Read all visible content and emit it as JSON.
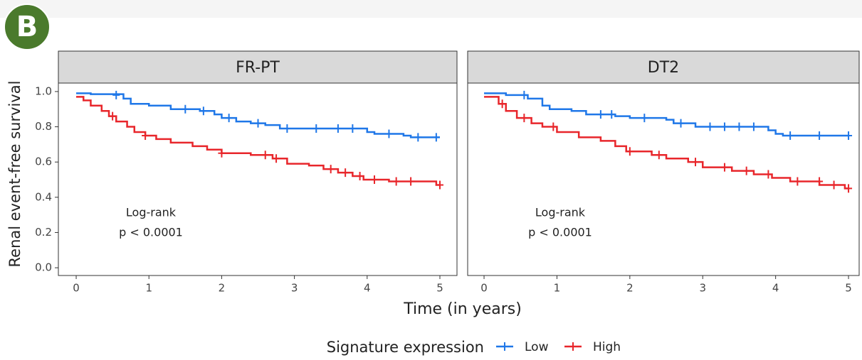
{
  "panel_label": "B",
  "chart_data": [
    {
      "type": "km",
      "title": "FR-PT",
      "ylabel": "Renal event-free survival",
      "xlabel": "Time (in years)",
      "legend_title": "Signature expression",
      "annotation": [
        "Log-rank",
        "p < 0.0001"
      ],
      "xlim": [
        -0.245,
        5.235
      ],
      "ylim": [
        -0.044,
        1.048
      ],
      "xticks": [
        0,
        1,
        2,
        3,
        4,
        5
      ],
      "yticks": [
        {
          "value": 0,
          "label": "0.0"
        },
        0.2,
        0.4,
        0.6,
        0.8,
        {
          "value": 1,
          "label": "1.0"
        }
      ],
      "series": [
        {
          "name": "Low",
          "color": "#1f77e8",
          "x": [
            0,
            0.2,
            0.65,
            0.75,
            1.0,
            1.3,
            1.7,
            1.9,
            2.0,
            2.2,
            2.4,
            2.6,
            2.8,
            4.0,
            4.1,
            4.5,
            4.6,
            5.0
          ],
          "values": [
            0.99,
            0.985,
            0.96,
            0.93,
            0.92,
            0.9,
            0.89,
            0.87,
            0.85,
            0.83,
            0.82,
            0.81,
            0.79,
            0.77,
            0.76,
            0.75,
            0.74,
            0.74
          ],
          "censor_x": [
            0.55,
            1.5,
            1.75,
            2.1,
            2.5,
            2.9,
            3.3,
            3.6,
            3.8,
            4.3,
            4.7,
            4.95
          ],
          "censor_y": [
            0.98,
            0.9,
            0.89,
            0.85,
            0.82,
            0.79,
            0.79,
            0.79,
            0.79,
            0.76,
            0.74,
            0.74
          ]
        },
        {
          "name": "High",
          "color": "#e8262b",
          "x": [
            0,
            0.1,
            0.2,
            0.35,
            0.45,
            0.55,
            0.7,
            0.8,
            0.95,
            1.1,
            1.3,
            1.6,
            1.8,
            2.0,
            2.4,
            2.7,
            2.9,
            3.2,
            3.4,
            3.6,
            3.8,
            3.95,
            4.3,
            4.95,
            5.0
          ],
          "values": [
            0.97,
            0.95,
            0.92,
            0.89,
            0.86,
            0.83,
            0.8,
            0.77,
            0.75,
            0.73,
            0.71,
            0.69,
            0.67,
            0.65,
            0.64,
            0.62,
            0.59,
            0.58,
            0.56,
            0.54,
            0.52,
            0.5,
            0.49,
            0.47,
            0.47
          ],
          "censor_x": [
            0.5,
            0.95,
            2.0,
            2.6,
            2.75,
            3.5,
            3.7,
            3.9,
            4.1,
            4.4,
            4.6,
            5.0
          ],
          "censor_y": [
            0.86,
            0.75,
            0.65,
            0.64,
            0.62,
            0.56,
            0.54,
            0.52,
            0.5,
            0.49,
            0.49,
            0.47
          ]
        }
      ]
    },
    {
      "type": "km",
      "title": "DT2",
      "annotation": [
        "Log-rank",
        "p < 0.0001"
      ],
      "xlim": [
        -0.225,
        5.146
      ],
      "ylim": [
        -0.044,
        1.048
      ],
      "xticks": [
        0,
        1,
        2,
        3,
        4,
        5
      ],
      "series": [
        {
          "name": "Low",
          "color": "#1f77e8",
          "x": [
            0,
            0.3,
            0.6,
            0.8,
            0.9,
            1.2,
            1.4,
            1.8,
            2.0,
            2.5,
            2.6,
            2.9,
            3.9,
            4.0,
            4.1,
            5.0
          ],
          "values": [
            0.99,
            0.98,
            0.96,
            0.92,
            0.9,
            0.89,
            0.87,
            0.86,
            0.85,
            0.84,
            0.82,
            0.8,
            0.78,
            0.76,
            0.75,
            0.75
          ],
          "censor_x": [
            0.55,
            1.6,
            1.75,
            2.2,
            2.7,
            3.1,
            3.3,
            3.5,
            3.7,
            4.2,
            4.6,
            5.0
          ],
          "censor_y": [
            0.98,
            0.87,
            0.87,
            0.85,
            0.82,
            0.8,
            0.8,
            0.8,
            0.8,
            0.75,
            0.75,
            0.75
          ]
        },
        {
          "name": "High",
          "color": "#e8262b",
          "x": [
            0,
            0.2,
            0.3,
            0.45,
            0.65,
            0.8,
            1.0,
            1.3,
            1.6,
            1.8,
            1.95,
            2.3,
            2.5,
            2.8,
            3.0,
            3.4,
            3.7,
            3.95,
            4.2,
            4.6,
            4.95,
            5.0
          ],
          "values": [
            0.97,
            0.93,
            0.89,
            0.85,
            0.82,
            0.8,
            0.77,
            0.74,
            0.72,
            0.69,
            0.66,
            0.64,
            0.62,
            0.6,
            0.57,
            0.55,
            0.53,
            0.51,
            0.49,
            0.47,
            0.45,
            0.45
          ],
          "censor_x": [
            0.25,
            0.55,
            0.95,
            2.0,
            2.4,
            2.9,
            3.3,
            3.6,
            3.9,
            4.3,
            4.6,
            4.8,
            5.0
          ],
          "censor_y": [
            0.93,
            0.85,
            0.8,
            0.66,
            0.64,
            0.6,
            0.57,
            0.55,
            0.53,
            0.49,
            0.49,
            0.47,
            0.45
          ]
        }
      ]
    }
  ]
}
